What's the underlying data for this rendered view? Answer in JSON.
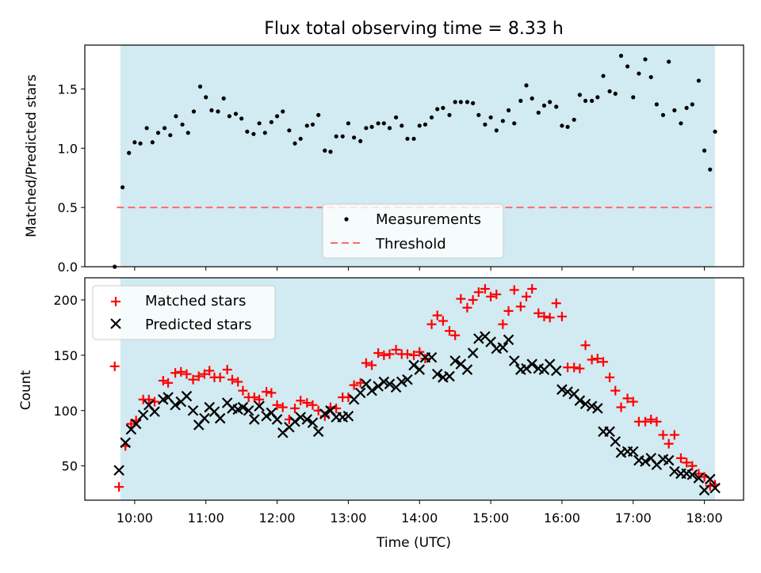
{
  "chart_data": [
    {
      "type": "scatter",
      "title": "Flux total observing time = 8.33 h",
      "xlabel": "",
      "ylabel": "Matched/Predicted stars",
      "xlim": [
        9.3,
        18.55
      ],
      "ylim": [
        0.0,
        1.87
      ],
      "yticks": [
        0.0,
        0.5,
        1.0,
        1.5
      ],
      "ytick_labels": [
        "0.0",
        "0.5",
        "1.0",
        "1.5"
      ],
      "grid": false,
      "legend_position": "lower-center",
      "shaded_interval": {
        "start": 9.8,
        "end": 18.15,
        "color": "#add8e6"
      },
      "threshold": {
        "name": "Threshold",
        "value": 0.5,
        "color": "#ff6b6b"
      },
      "series": [
        {
          "name": "Measurements",
          "color": "#000000",
          "x": [
            9.72,
            9.83,
            9.92,
            10.0,
            10.08,
            10.17,
            10.25,
            10.33,
            10.42,
            10.5,
            10.58,
            10.67,
            10.75,
            10.83,
            10.92,
            11.0,
            11.08,
            11.17,
            11.25,
            11.33,
            11.42,
            11.5,
            11.58,
            11.67,
            11.75,
            11.83,
            11.92,
            12.0,
            12.08,
            12.17,
            12.25,
            12.33,
            12.42,
            12.5,
            12.58,
            12.67,
            12.75,
            12.83,
            12.92,
            13.0,
            13.08,
            13.17,
            13.25,
            13.33,
            13.42,
            13.5,
            13.58,
            13.67,
            13.75,
            13.83,
            13.92,
            14.0,
            14.08,
            14.17,
            14.25,
            14.33,
            14.42,
            14.5,
            14.58,
            14.67,
            14.75,
            14.83,
            14.92,
            15.0,
            15.08,
            15.17,
            15.25,
            15.33,
            15.42,
            15.5,
            15.58,
            15.67,
            15.75,
            15.83,
            15.92,
            16.0,
            16.08,
            16.17,
            16.25,
            16.33,
            16.42,
            16.5,
            16.58,
            16.67,
            16.75,
            16.83,
            16.92,
            17.0,
            17.08,
            17.17,
            17.25,
            17.33,
            17.42,
            17.5,
            17.58,
            17.67,
            17.75,
            17.83,
            17.92,
            18.0,
            18.08,
            18.15
          ],
          "y": [
            0.0,
            0.67,
            0.96,
            1.05,
            1.04,
            1.17,
            1.05,
            1.13,
            1.17,
            1.11,
            1.27,
            1.2,
            1.13,
            1.31,
            1.52,
            1.43,
            1.32,
            1.31,
            1.42,
            1.27,
            1.29,
            1.25,
            1.14,
            1.12,
            1.21,
            1.13,
            1.22,
            1.27,
            1.31,
            1.15,
            1.04,
            1.08,
            1.19,
            1.2,
            1.28,
            0.98,
            0.97,
            1.1,
            1.1,
            1.21,
            1.09,
            1.06,
            1.17,
            1.18,
            1.21,
            1.21,
            1.17,
            1.26,
            1.19,
            1.08,
            1.08,
            1.19,
            1.2,
            1.26,
            1.33,
            1.34,
            1.28,
            1.39,
            1.39,
            1.39,
            1.38,
            1.28,
            1.2,
            1.26,
            1.15,
            1.23,
            1.32,
            1.21,
            1.4,
            1.53,
            1.42,
            1.3,
            1.36,
            1.39,
            1.35,
            1.19,
            1.18,
            1.24,
            1.45,
            1.4,
            1.4,
            1.43,
            1.61,
            1.48,
            1.46,
            1.78,
            1.69,
            1.43,
            1.63,
            1.75,
            1.6,
            1.37,
            1.28,
            1.73,
            1.32,
            1.21,
            1.34,
            1.37,
            1.57,
            0.98,
            0.82,
            1.14
          ]
        }
      ]
    },
    {
      "type": "scatter",
      "title": "",
      "xlabel": "Time (UTC)",
      "ylabel": "Count",
      "xlim": [
        9.3,
        18.55
      ],
      "ylim": [
        19,
        220
      ],
      "xticks": [
        10,
        11,
        12,
        13,
        14,
        15,
        16,
        17,
        18
      ],
      "xtick_labels": [
        "10:00",
        "11:00",
        "12:00",
        "13:00",
        "14:00",
        "15:00",
        "16:00",
        "17:00",
        "18:00"
      ],
      "yticks": [
        50,
        100,
        150,
        200
      ],
      "ytick_labels": [
        "50",
        "100",
        "150",
        "200"
      ],
      "grid": false,
      "legend_position": "upper-left",
      "shaded_interval": {
        "start": 9.8,
        "end": 18.15,
        "color": "#add8e6"
      },
      "series": [
        {
          "name": "Matched stars",
          "marker": "+",
          "color": "#ff0000",
          "x": [
            9.72,
            9.78,
            9.87,
            9.95,
            10.02,
            10.12,
            10.2,
            10.28,
            10.4,
            10.47,
            10.57,
            10.65,
            10.73,
            10.82,
            10.9,
            10.98,
            11.05,
            11.12,
            11.2,
            11.3,
            11.37,
            11.45,
            11.52,
            11.6,
            11.68,
            11.75,
            11.85,
            11.92,
            12.0,
            12.08,
            12.17,
            12.25,
            12.33,
            12.42,
            12.5,
            12.58,
            12.67,
            12.75,
            12.83,
            12.92,
            13.0,
            13.08,
            13.17,
            13.25,
            13.33,
            13.42,
            13.5,
            13.58,
            13.67,
            13.75,
            13.83,
            13.92,
            14.0,
            14.08,
            14.17,
            14.25,
            14.33,
            14.42,
            14.5,
            14.58,
            14.67,
            14.75,
            14.83,
            14.92,
            15.0,
            15.08,
            15.17,
            15.25,
            15.33,
            15.42,
            15.5,
            15.58,
            15.67,
            15.75,
            15.83,
            15.92,
            16.0,
            16.08,
            16.17,
            16.25,
            16.33,
            16.42,
            16.5,
            16.58,
            16.67,
            16.75,
            16.83,
            16.92,
            17.0,
            17.08,
            17.17,
            17.25,
            17.33,
            17.42,
            17.5,
            17.58,
            17.67,
            17.75,
            17.83,
            17.92,
            18.0,
            18.08,
            18.15
          ],
          "y": [
            140,
            31,
            68,
            88,
            91,
            110,
            110,
            108,
            127,
            125,
            134,
            135,
            133,
            128,
            131,
            133,
            136,
            130,
            130,
            137,
            128,
            126,
            118,
            112,
            112,
            110,
            117,
            116,
            105,
            103,
            92,
            102,
            109,
            107,
            105,
            100,
            95,
            103,
            102,
            112,
            112,
            123,
            125,
            143,
            141,
            152,
            150,
            151,
            155,
            151,
            151,
            150,
            153,
            147,
            178,
            186,
            181,
            172,
            168,
            201,
            193,
            200,
            207,
            210,
            203,
            205,
            178,
            190,
            209,
            194,
            203,
            210,
            188,
            185,
            184,
            197,
            185,
            139,
            139,
            138,
            159,
            146,
            147,
            144,
            130,
            118,
            103,
            111,
            108,
            90,
            90,
            92,
            90,
            78,
            70,
            78,
            57,
            53,
            50,
            43,
            40,
            32,
            33
          ]
        },
        {
          "name": "Predicted stars",
          "marker": "x",
          "color": "#000000",
          "x": [
            9.78,
            9.87,
            9.95,
            10.02,
            10.12,
            10.2,
            10.28,
            10.4,
            10.47,
            10.57,
            10.65,
            10.73,
            10.82,
            10.9,
            10.98,
            11.05,
            11.12,
            11.2,
            11.3,
            11.37,
            11.45,
            11.52,
            11.6,
            11.68,
            11.75,
            11.85,
            11.92,
            12.0,
            12.08,
            12.17,
            12.25,
            12.33,
            12.42,
            12.5,
            12.58,
            12.67,
            12.75,
            12.83,
            12.92,
            13.0,
            13.08,
            13.17,
            13.25,
            13.33,
            13.42,
            13.5,
            13.58,
            13.67,
            13.75,
            13.83,
            13.92,
            14.0,
            14.08,
            14.17,
            14.25,
            14.33,
            14.42,
            14.5,
            14.58,
            14.67,
            14.75,
            14.83,
            14.92,
            15.0,
            15.08,
            15.17,
            15.25,
            15.33,
            15.42,
            15.5,
            15.58,
            15.67,
            15.75,
            15.83,
            15.92,
            16.0,
            16.08,
            16.17,
            16.25,
            16.33,
            16.42,
            16.5,
            16.58,
            16.67,
            16.75,
            16.83,
            16.92,
            17.0,
            17.08,
            17.17,
            17.25,
            17.33,
            17.42,
            17.5,
            17.58,
            17.67,
            17.75,
            17.83,
            17.92,
            18.0,
            18.08,
            18.15
          ],
          "y": [
            46,
            71,
            83,
            88,
            96,
            105,
            99,
            110,
            112,
            105,
            108,
            113,
            100,
            87,
            93,
            103,
            99,
            93,
            107,
            102,
            101,
            103,
            100,
            92,
            104,
            95,
            98,
            92,
            80,
            85,
            90,
            94,
            92,
            89,
            81,
            97,
            100,
            94,
            94,
            95,
            110,
            116,
            124,
            118,
            122,
            126,
            124,
            121,
            126,
            128,
            141,
            137,
            148,
            148,
            133,
            130,
            131,
            145,
            142,
            137,
            152,
            165,
            167,
            162,
            156,
            157,
            164,
            145,
            137,
            138,
            142,
            138,
            137,
            142,
            136,
            119,
            117,
            115,
            109,
            106,
            104,
            102,
            81,
            81,
            72,
            62,
            63,
            63,
            55,
            54,
            57,
            51,
            56,
            55,
            45,
            43,
            43,
            42,
            39,
            28,
            38,
            30
          ]
        }
      ]
    }
  ]
}
